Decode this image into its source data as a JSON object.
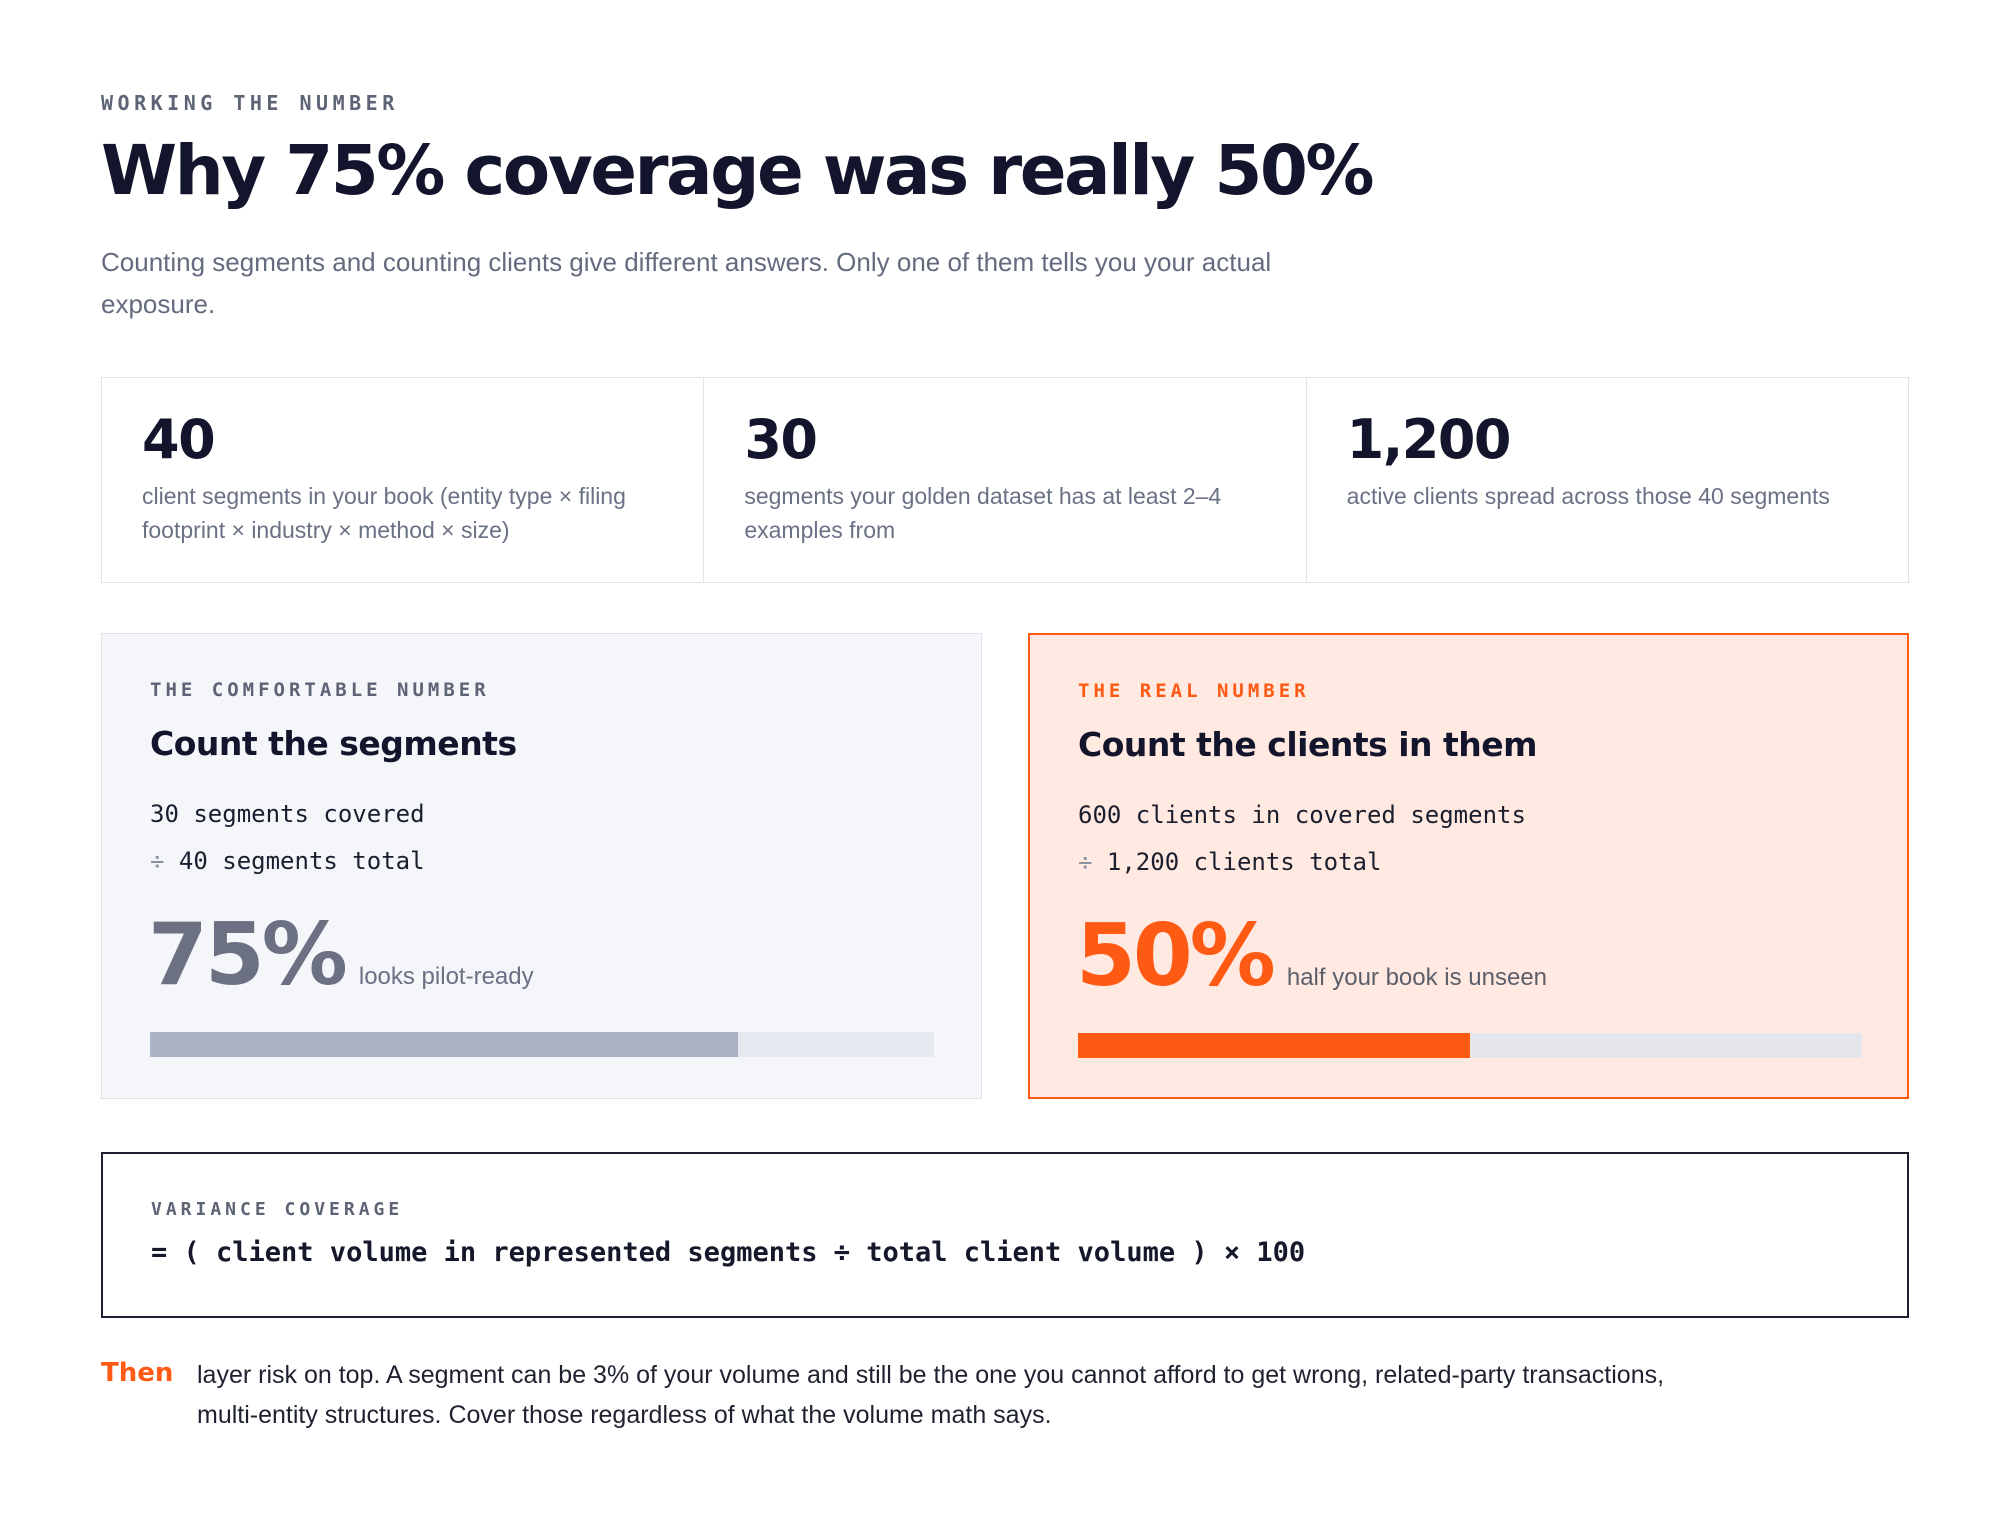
{
  "header": {
    "eyebrow": "WORKING THE NUMBER",
    "title": "Why 75% coverage was really 50%",
    "subtitle": "Counting segments and counting clients give different answers. Only one of them tells you your actual exposure."
  },
  "stats": [
    {
      "value": "40",
      "label": "client segments in your book (entity type × filing footprint × industry × method × size)"
    },
    {
      "value": "30",
      "label": "segments your golden dataset has at least 2–4 examples from"
    },
    {
      "value": "1,200",
      "label": "active clients spread across those 40 segments"
    }
  ],
  "comfortable": {
    "eyebrow": "THE COMFORTABLE NUMBER",
    "title": "Count the segments",
    "line1": "30 segments covered",
    "line2_sign": "÷",
    "line2": "40 segments total",
    "percent": "75%",
    "note": "looks pilot-ready",
    "fill_fraction": 0.75
  },
  "real": {
    "eyebrow": "THE REAL NUMBER",
    "title": "Count the clients in them",
    "line1": "600 clients in covered segments",
    "line2_sign": "÷",
    "line2": "1,200 clients total",
    "percent": "50%",
    "note": "half your book is unseen",
    "fill_fraction": 0.5
  },
  "formula": {
    "label": "VARIANCE COVERAGE",
    "expression": "= ( client volume in represented segments ÷ total client volume ) × 100"
  },
  "footnote": {
    "lead": "Then",
    "text": "layer risk on top. A segment can be 3% of your volume and still be the one you cannot afford to get wrong, related-party transactions, multi-entity structures. Cover those regardless of what the volume math says."
  },
  "colors": {
    "accent": "#ff5a14",
    "ink": "#12152b",
    "muted": "#6a7184",
    "comfortable_fill": "#aab2c5"
  }
}
